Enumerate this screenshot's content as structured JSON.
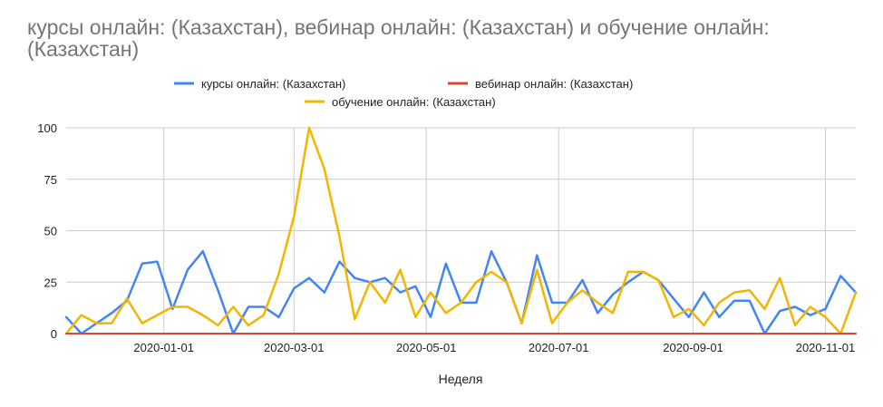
{
  "chart_data": {
    "type": "line",
    "title": "курсы онлайн: (Казахстан), вебинар онлайн: (Казахстан) и обучение онлайн: (Казахстан)",
    "xlabel": "Неделя",
    "ylabel": "",
    "ylim": [
      0,
      100
    ],
    "yticks": [
      "0",
      "25",
      "50",
      "75",
      "100"
    ],
    "grid": true,
    "legend_position": "top",
    "x_start": "2019-11-17",
    "x_step_days": 7,
    "xticks": [
      {
        "label": "2020-01-01",
        "date": "2020-01-01"
      },
      {
        "label": "2020-03-01",
        "date": "2020-03-01"
      },
      {
        "label": "2020-05-01",
        "date": "2020-05-01"
      },
      {
        "label": "2020-07-01",
        "date": "2020-07-01"
      },
      {
        "label": "2020-09-01",
        "date": "2020-09-01"
      },
      {
        "label": "2020-11-01",
        "date": "2020-11-01"
      }
    ],
    "series": [
      {
        "name": "курсы онлайн: (Казахстан)",
        "color": "#4285f4",
        "values": [
          8,
          0,
          5,
          10,
          16,
          34,
          35,
          12,
          31,
          40,
          21,
          0,
          13,
          13,
          8,
          22,
          27,
          20,
          35,
          27,
          25,
          27,
          20,
          23,
          8,
          34,
          15,
          15,
          40,
          25,
          5,
          38,
          15,
          15,
          26,
          10,
          19,
          25,
          30,
          26,
          17,
          8,
          20,
          8,
          16,
          16,
          0,
          11,
          13,
          9,
          12,
          28,
          20
        ]
      },
      {
        "name": "вебинар онлайн: (Казахстан)",
        "color": "#db4437",
        "values": [
          0,
          0,
          0,
          0,
          0,
          0,
          0,
          0,
          0,
          0,
          0,
          0,
          0,
          0,
          0,
          0,
          0,
          0,
          0,
          0,
          0,
          0,
          0,
          0,
          0,
          0,
          0,
          0,
          0,
          0,
          0,
          0,
          0,
          0,
          0,
          0,
          0,
          0,
          0,
          0,
          0,
          0,
          0,
          0,
          0,
          0,
          0,
          0,
          0,
          0,
          0,
          0,
          0
        ]
      },
      {
        "name": "обучение онлайн: (Казахстан)",
        "color": "#f4b400",
        "values": [
          0,
          9,
          5,
          5,
          17,
          5,
          9,
          13,
          13,
          9,
          4,
          13,
          4,
          9,
          29,
          57,
          100,
          80,
          47,
          7,
          25,
          15,
          31,
          8,
          20,
          10,
          15,
          25,
          30,
          25,
          5,
          31,
          5,
          15,
          21,
          15,
          10,
          30,
          30,
          26,
          8,
          12,
          4,
          15,
          20,
          21,
          12,
          27,
          4,
          13,
          8,
          0,
          20
        ]
      }
    ]
  }
}
